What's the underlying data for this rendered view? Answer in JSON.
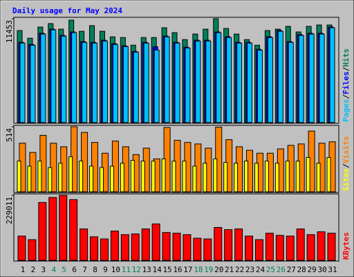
{
  "chart_data": [
    {
      "type": "bar",
      "title": "Daily usage for May 2024",
      "legend_separator": "/",
      "ylim": [
        0,
        11453
      ],
      "yticks": [
        11453
      ],
      "series": [
        {
          "name": "Hits",
          "color": "#00805c",
          "values": [
            10146,
            9301,
            10531,
            10915,
            10300,
            11299,
            10069,
            10684,
            10069,
            9454,
            9378,
            8532,
            9378,
            9378,
            10454,
            9916,
            9147,
            9762,
            10300,
            11453,
            10377,
            9762,
            9147,
            8532,
            10146,
            10300,
            10608,
            9993,
            10608,
            10761,
            10761
          ]
        },
        {
          "name": "Files",
          "color": "#0000ff",
          "values": [
            8850,
            8620,
            9850,
            10310,
            9620,
            10000,
            8930,
            8850,
            9080,
            8700,
            8470,
            7850,
            8850,
            8370,
            9540,
            8850,
            8310,
            9080,
            9080,
            10000,
            9470,
            8850,
            8850,
            8080,
            9470,
            10160,
            8930,
            9700,
            9850,
            9850,
            10540
          ]
        },
        {
          "name": "Pages",
          "color": "#00c0ff",
          "values": [
            8763,
            8532,
            9762,
            10223,
            9532,
            9916,
            8840,
            8763,
            8993,
            8609,
            8379,
            7764,
            8763,
            7994,
            9455,
            8763,
            8225,
            8993,
            8993,
            9916,
            9378,
            8763,
            8763,
            7994,
            9378,
            10070,
            8840,
            9608,
            9762,
            9762,
            10454
          ]
        }
      ]
    },
    {
      "type": "bar",
      "legend_separator": "/",
      "ylim": [
        0,
        514
      ],
      "yticks": [
        514
      ],
      "series": [
        {
          "name": "Visits",
          "color": "#ff8000",
          "values": [
            384,
            311,
            446,
            384,
            356,
            514,
            469,
            390,
            305,
            401,
            356,
            294,
            345,
            260,
            508,
            407,
            390,
            378,
            345,
            511,
            412,
            356,
            328,
            305,
            305,
            339,
            367,
            378,
            480,
            384,
            395
          ]
        },
        {
          "name": "Sites",
          "color": "#ffff00",
          "values": [
            243,
            203,
            243,
            192,
            226,
            277,
            243,
            203,
            192,
            203,
            226,
            249,
            243,
            243,
            260,
            243,
            243,
            203,
            226,
            260,
            232,
            226,
            243,
            226,
            243,
            226,
            243,
            243,
            271,
            226,
            271
          ]
        }
      ]
    },
    {
      "type": "bar",
      "ylim": [
        0,
        229011
      ],
      "yticks": [
        229011
      ],
      "categories": [
        "1",
        "2",
        "3",
        "4",
        "5",
        "6",
        "7",
        "8",
        "9",
        "10",
        "11",
        "12",
        "13",
        "14",
        "15",
        "16",
        "17",
        "18",
        "19",
        "20",
        "21",
        "22",
        "23",
        "24",
        "25",
        "26",
        "27",
        "28",
        "29",
        "30",
        "31"
      ],
      "category_colors": [
        "#000000",
        "#000000",
        "#000000",
        "#00805c",
        "#00805c",
        "#000000",
        "#000000",
        "#000000",
        "#000000",
        "#000000",
        "#00805c",
        "#00805c",
        "#000000",
        "#000000",
        "#000000",
        "#000000",
        "#000000",
        "#00805c",
        "#00805c",
        "#000000",
        "#000000",
        "#000000",
        "#000000",
        "#000000",
        "#00805c",
        "#00805c",
        "#000000",
        "#000000",
        "#000000",
        "#000000",
        "#000000"
      ],
      "series": [
        {
          "name": "KBytes",
          "color": "#ff0000",
          "values": [
            85565,
            72982,
            203847,
            221463,
            229011,
            213912,
            110731,
            83048,
            75498,
            103182,
            90598,
            93115,
            110731,
            128347,
            98148,
            95632,
            90598,
            78015,
            75498,
            115764,
            108214,
            110731,
            85565,
            72982,
            95632,
            88082,
            85565,
            110731,
            90598,
            100664,
            95632
          ]
        }
      ]
    }
  ]
}
